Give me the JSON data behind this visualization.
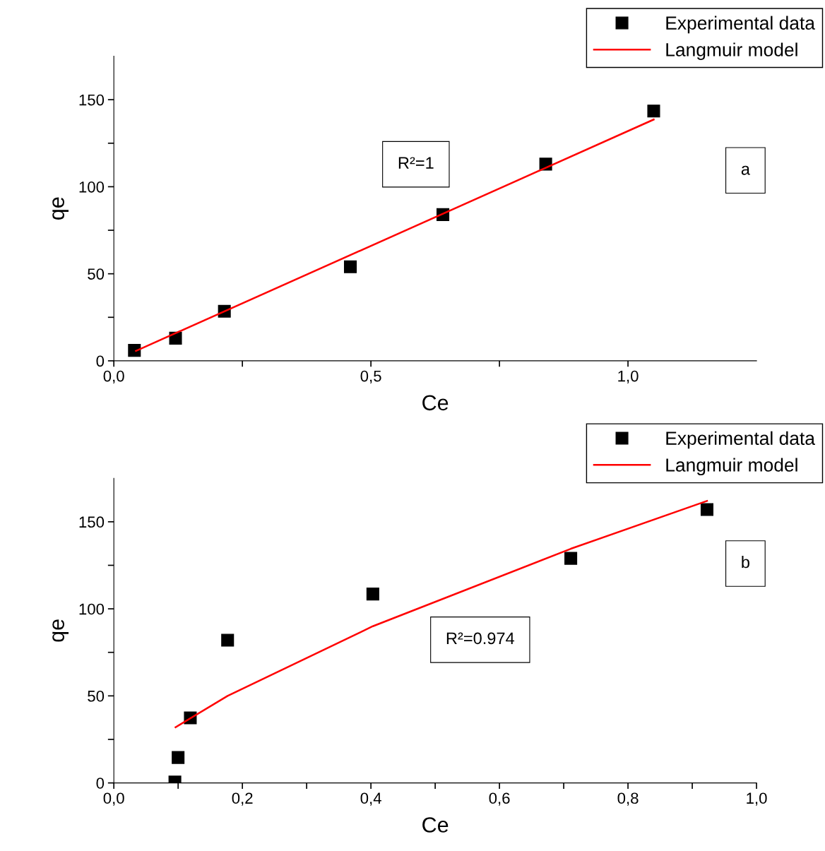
{
  "chart_data": [
    {
      "type": "scatter",
      "xlabel": "Ce",
      "ylabel": "qe",
      "legend": "top right",
      "grid": false,
      "xlim": [
        0,
        1.25
      ],
      "ylim": [
        0,
        175
      ],
      "xticks": [
        {
          "value": 0,
          "label": "0,0"
        },
        {
          "value": 0.25,
          "label": null
        },
        {
          "value": 0.5,
          "label": "0,5"
        },
        {
          "value": 0.75,
          "label": null
        },
        {
          "value": 1.0,
          "label": "1,0"
        }
      ],
      "yticks": [
        0,
        {
          "value": 25,
          "label": null
        },
        50,
        {
          "value": 75,
          "label": null
        },
        100,
        {
          "value": 125,
          "label": null
        },
        150
      ],
      "annotations": [
        "R²=1",
        "a"
      ],
      "series": [
        {
          "name": "Experimental data",
          "marker": "square",
          "color": "#000000",
          "x": [
            0.04,
            0.12,
            0.215,
            0.46,
            0.64,
            0.84,
            1.05
          ],
          "values": [
            6,
            13,
            28.5,
            54,
            84,
            113,
            143.5
          ]
        },
        {
          "name": "Langmuir model",
          "type": "line",
          "marker": "none",
          "color": "#ff0000",
          "x": [
            0.043,
            1.05
          ],
          "values": [
            5.7,
            138.6
          ]
        }
      ]
    },
    {
      "type": "scatter",
      "xlabel": "Ce",
      "ylabel": "qe",
      "legend": "top right",
      "grid": false,
      "xlim": [
        0,
        1.0
      ],
      "ylim": [
        0,
        175
      ],
      "xticks": [
        {
          "value": 0,
          "label": "0,0"
        },
        {
          "value": 0.1,
          "label": null
        },
        {
          "value": 0.2,
          "label": "0,2"
        },
        {
          "value": 0.3,
          "label": null
        },
        {
          "value": 0.4,
          "label": "0,4"
        },
        {
          "value": 0.5,
          "label": null
        },
        {
          "value": 0.6,
          "label": "0,6"
        },
        {
          "value": 0.7,
          "label": null
        },
        {
          "value": 0.8,
          "label": "0,8"
        },
        {
          "value": 0.9,
          "label": null
        },
        {
          "value": 1.0,
          "label": "1,0"
        }
      ],
      "yticks": [
        0,
        {
          "value": 25,
          "label": null
        },
        50,
        {
          "value": 75,
          "label": null
        },
        100,
        {
          "value": 125,
          "label": null
        },
        150
      ],
      "annotations": [
        "R²=0.974",
        "b"
      ],
      "series": [
        {
          "name": "Experimental data",
          "marker": "square",
          "color": "#000000",
          "x": [
            0.095,
            0.1,
            0.119,
            0.177,
            0.403,
            0.711,
            0.923
          ],
          "values": [
            0.5,
            14.6,
            37.4,
            82,
            108.5,
            129,
            157
          ]
        },
        {
          "name": "Langmuir model",
          "type": "line",
          "marker": "none",
          "color": "#ff0000",
          "x": [
            0.096,
            0.177,
            0.403,
            0.711,
            0.923
          ],
          "values": [
            32,
            50,
            90,
            134.5,
            162
          ]
        }
      ]
    }
  ]
}
